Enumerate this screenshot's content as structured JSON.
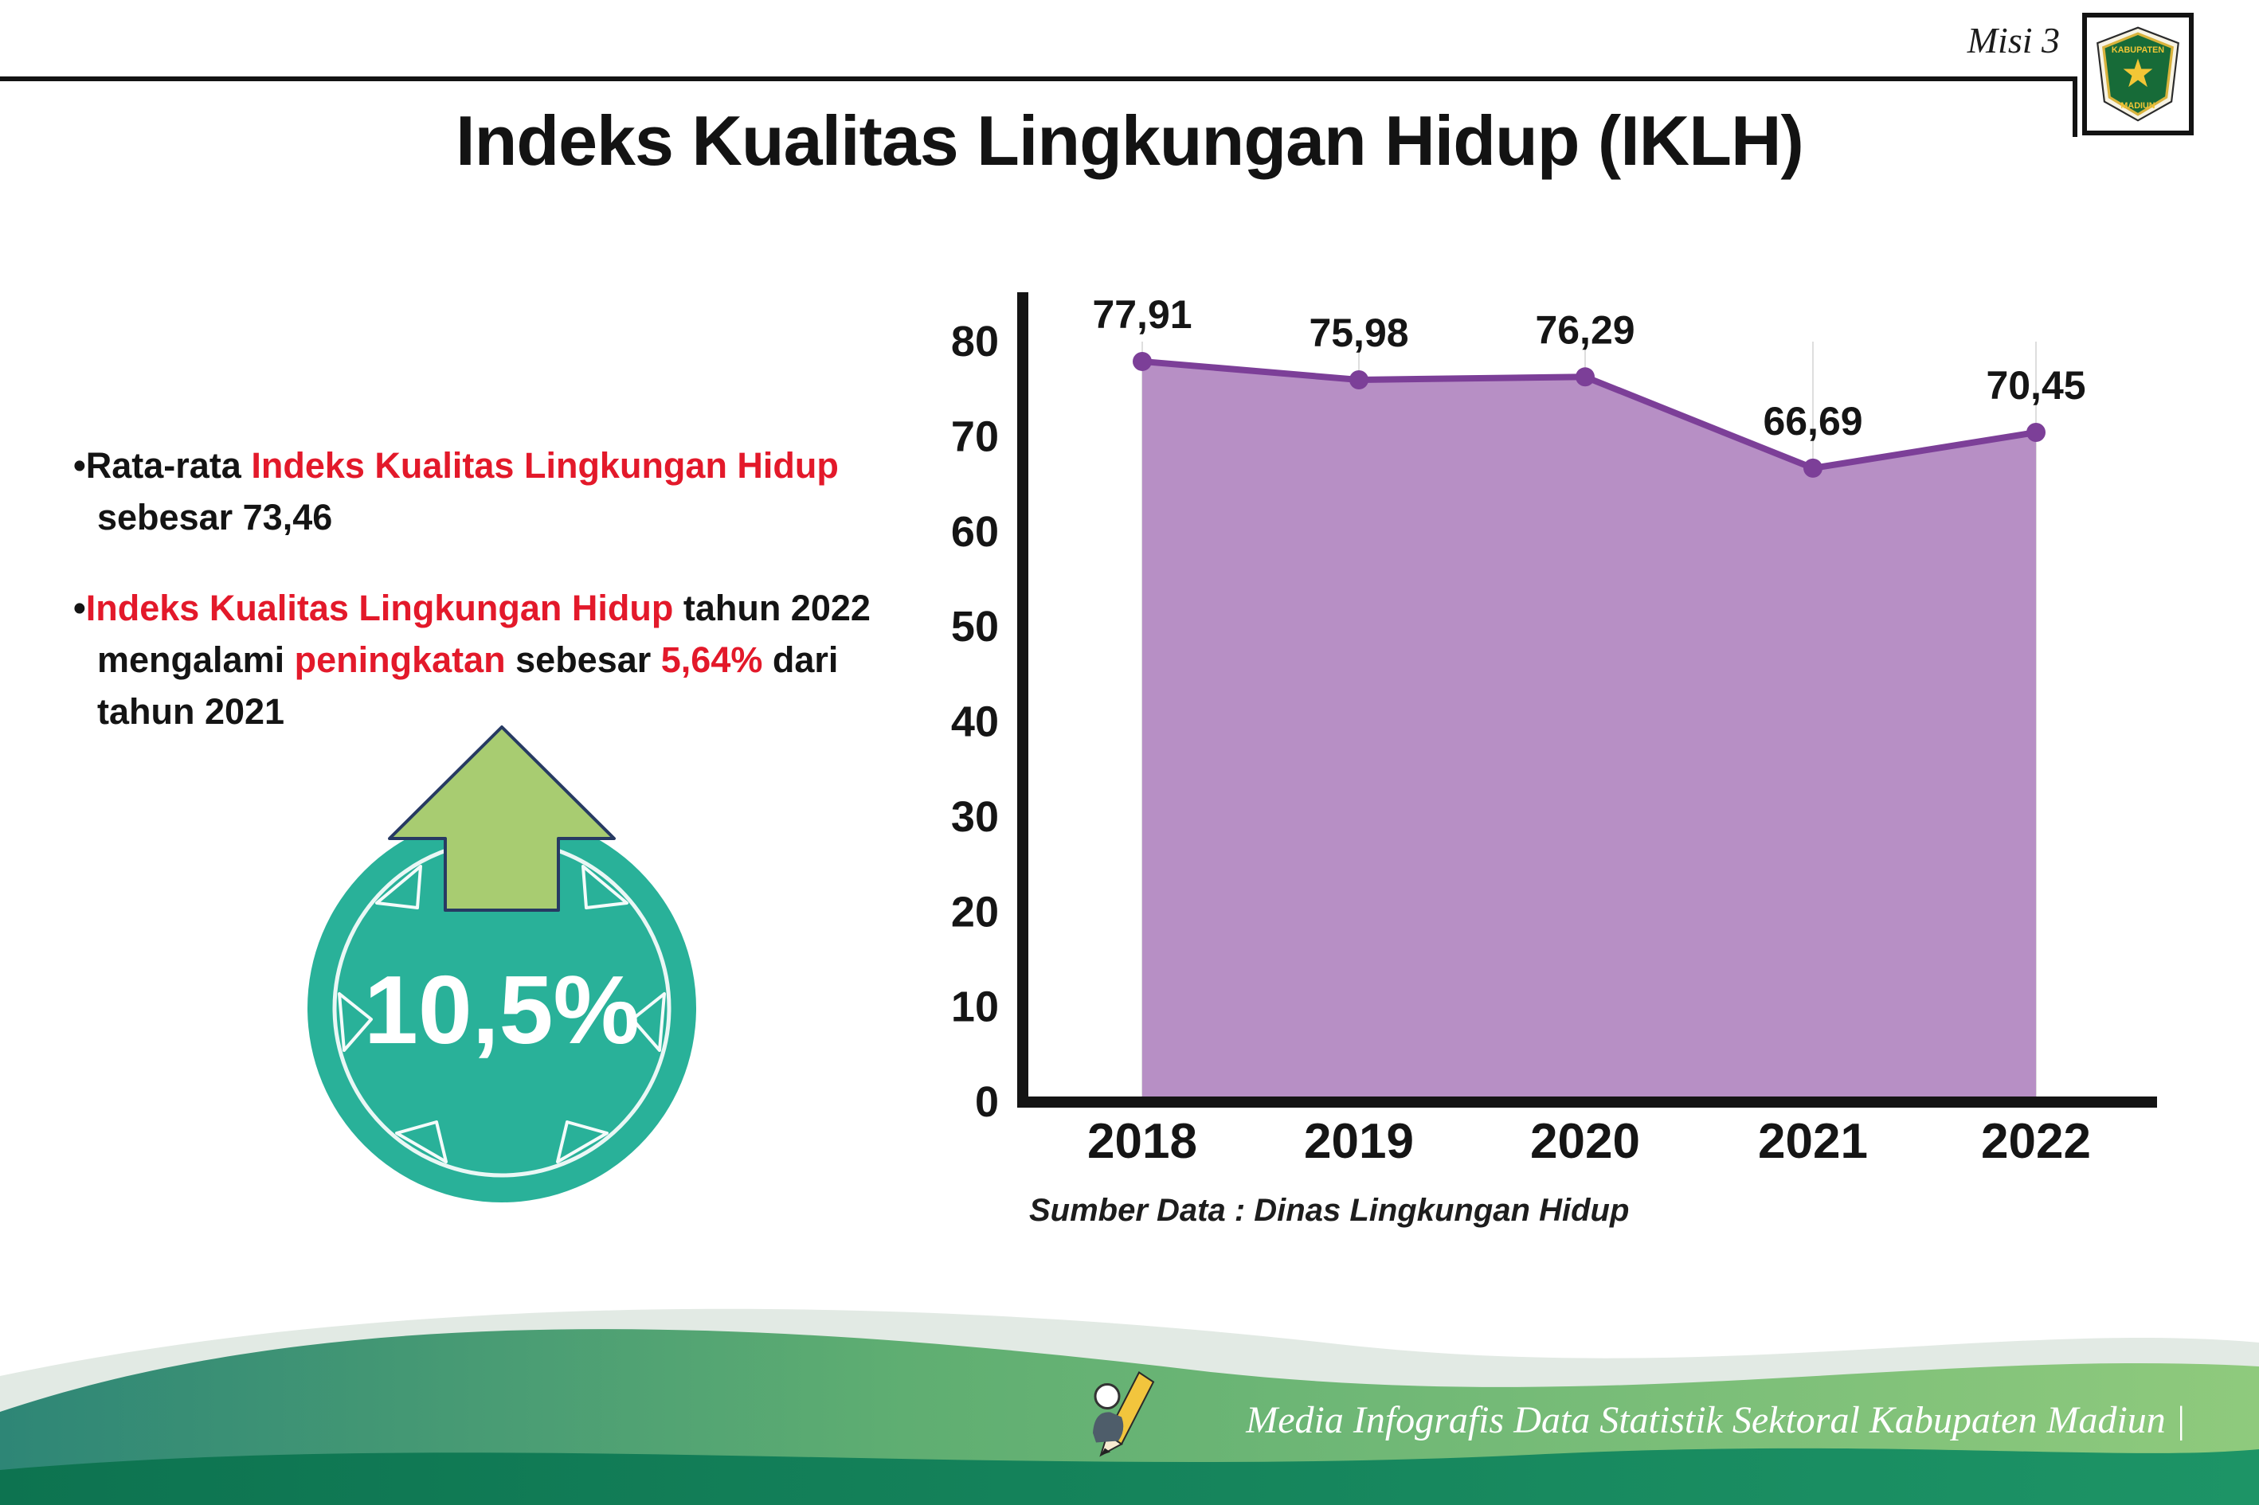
{
  "header": {
    "misi_label": "Misi 3",
    "title": "Indeks Kualitas Lingkungan Hidup (IKLH)",
    "logo": {
      "top_text": "KABUPATEN",
      "bottom_text": "MADIUN"
    }
  },
  "bullet_char": "•",
  "bullets": {
    "b1": {
      "s0": "Rata-rata ",
      "s1": "Indeks Kualitas Lingkungan Hidup",
      "s2": "sebesar 73,46"
    },
    "b2": {
      "s0": "Indeks Kualitas Lingkungan Hidup",
      "s1": " tahun 2022",
      "s2": "mengalami ",
      "s3": "peningkatan",
      "s4": " sebesar ",
      "s5": "5,64%",
      "s6": " dari",
      "s7": "tahun 2021"
    }
  },
  "badge": {
    "value": "10,5%",
    "circle_color": "#29b199",
    "arrow_color": "#a8cc71",
    "arrow_outline": "#273a63"
  },
  "colors": {
    "red_text": "#e3192a",
    "axis_black": "#141414"
  },
  "chart_data": {
    "type": "area",
    "title": "Indeks Kualitas Lingkungan Hidup (IKLH)",
    "categories": [
      "2018",
      "2019",
      "2020",
      "2021",
      "2022"
    ],
    "values": [
      77.91,
      75.98,
      76.29,
      66.69,
      70.45
    ],
    "value_labels": [
      "77,91",
      "75,98",
      "76,29",
      "66,69",
      "70,45"
    ],
    "ylim": [
      0,
      80
    ],
    "yticks": [
      0,
      10,
      20,
      30,
      40,
      50,
      60,
      70,
      80
    ],
    "xlabel": "",
    "ylabel": "",
    "legend": "none",
    "grid": "faint-vertical",
    "fill_color": "#b78fc5",
    "line_color": "#7c3f98",
    "source": "Sumber Data : Dinas Lingkungan Hidup"
  },
  "footer": {
    "text": "Media Infografis Data Statistik Sektoral Kabupaten Madiun |"
  }
}
